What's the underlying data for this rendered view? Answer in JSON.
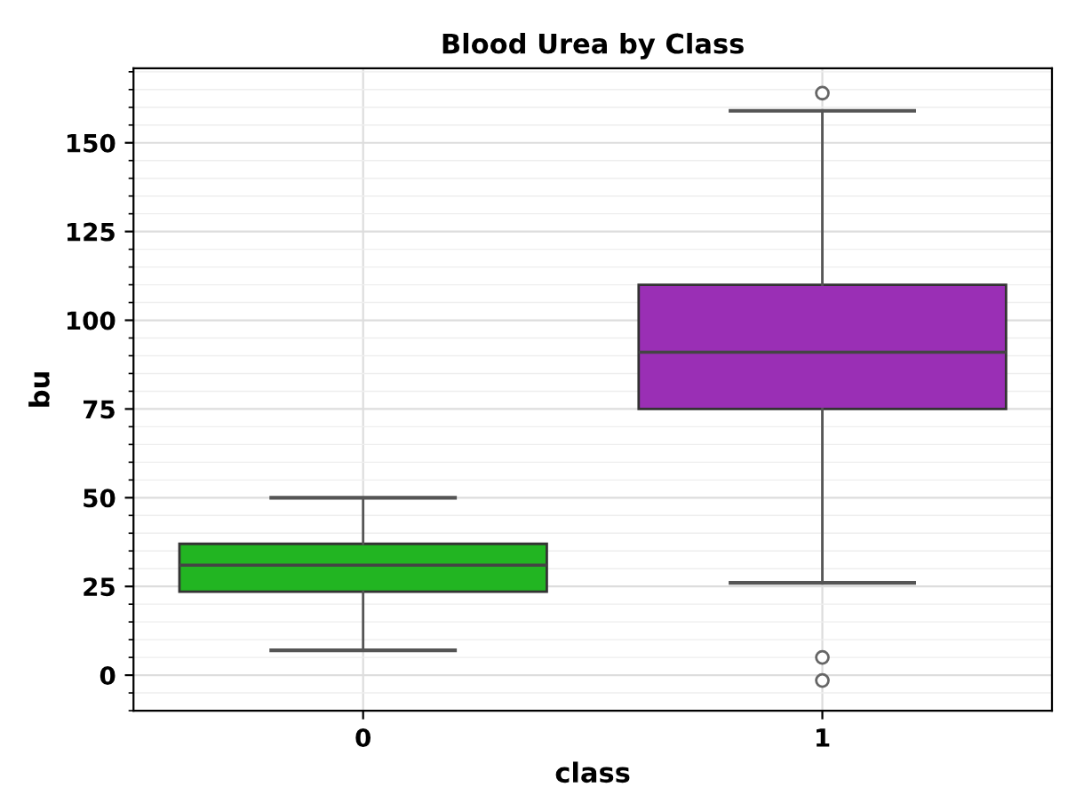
{
  "chart_data": {
    "type": "box",
    "title": "Blood Urea by Class",
    "xlabel": "class",
    "ylabel": "bu",
    "categories": [
      "0",
      "1"
    ],
    "colors": [
      "#22b522",
      "#9a2fb5"
    ],
    "boxes": [
      {
        "low": 7,
        "q1": 23.5,
        "median": 31,
        "q3": 37,
        "high": 50
      },
      {
        "low": 26,
        "q1": 75,
        "median": 91,
        "q3": 110,
        "high": 159,
        "outliers": [
          164,
          5,
          -1.5
        ]
      }
    ],
    "ylim": [
      -10,
      171
    ],
    "yticks": [
      0,
      25,
      50,
      75,
      100,
      125,
      150
    ],
    "grid": true
  }
}
